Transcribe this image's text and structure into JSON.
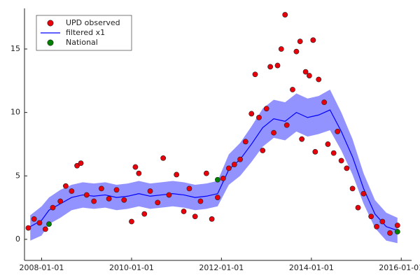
{
  "chart_data": {
    "type": "scatter",
    "xlim": [
      "2007-08-15",
      "2016-03-25"
    ],
    "xticks": [
      "2008-01-01",
      "2010-01-01",
      "2012-01-01",
      "2014-01-01",
      "2016-01-01"
    ],
    "ylim": [
      -1.66,
      18.2
    ],
    "yticks": [
      0,
      5,
      10,
      15
    ],
    "grid": false,
    "legend": "top-left",
    "series": [
      {
        "name": "UPD observed",
        "kind": "points",
        "color": "#e8000b",
        "x": [
          "2007-09-15",
          "2007-11-01",
          "2007-12-15",
          "2008-02-01",
          "2008-04-01",
          "2008-06-01",
          "2008-07-15",
          "2008-09-01",
          "2008-10-15",
          "2008-11-15",
          "2009-01-01",
          "2009-03-01",
          "2009-05-01",
          "2009-07-01",
          "2009-09-01",
          "2009-11-01",
          "2010-01-01",
          "2010-02-01",
          "2010-03-01",
          "2010-04-15",
          "2010-06-01",
          "2010-08-01",
          "2010-09-15",
          "2010-11-01",
          "2011-01-01",
          "2011-03-01",
          "2011-04-15",
          "2011-06-01",
          "2011-07-15",
          "2011-09-01",
          "2011-10-15",
          "2011-12-01",
          "2012-01-15",
          "2012-03-01",
          "2012-04-15",
          "2012-06-01",
          "2012-07-15",
          "2012-09-01",
          "2012-10-01",
          "2012-11-01",
          "2012-12-01",
          "2013-01-01",
          "2013-02-01",
          "2013-03-01",
          "2013-04-01",
          "2013-05-01",
          "2013-06-01",
          "2013-06-15",
          "2013-08-01",
          "2013-09-01",
          "2013-10-01",
          "2013-10-15",
          "2013-11-15",
          "2013-12-15",
          "2014-01-15",
          "2014-02-01",
          "2014-03-01",
          "2014-04-15",
          "2014-05-15",
          "2014-07-01",
          "2014-08-01",
          "2014-09-01",
          "2014-10-15",
          "2014-12-01",
          "2015-01-15",
          "2015-03-01",
          "2015-05-01",
          "2015-06-15",
          "2015-08-01",
          "2015-10-01",
          "2015-12-01"
        ],
        "values": [
          0.9,
          1.6,
          1.3,
          0.8,
          2.5,
          3.0,
          4.2,
          3.8,
          5.8,
          6.0,
          3.5,
          3.0,
          4.0,
          3.2,
          3.9,
          3.1,
          1.4,
          5.7,
          5.2,
          2.0,
          3.8,
          2.9,
          6.4,
          3.5,
          5.1,
          2.2,
          4.0,
          1.8,
          3.0,
          5.2,
          1.6,
          3.3,
          4.8,
          5.6,
          5.9,
          6.3,
          7.7,
          9.9,
          13.0,
          9.6,
          7.0,
          10.3,
          13.6,
          8.4,
          13.7,
          15.0,
          17.7,
          9.0,
          11.8,
          14.8,
          15.6,
          7.9,
          13.2,
          12.9,
          15.7,
          6.9,
          12.6,
          10.8,
          7.5,
          6.8,
          8.5,
          6.2,
          5.6,
          4.0,
          2.5,
          3.6,
          1.8,
          1.0,
          1.4,
          0.5,
          1.1
        ]
      },
      {
        "name": "filtered x1",
        "kind": "line",
        "color": "#0000ff",
        "band_color": "#8080ff",
        "x": [
          "2007-10-01",
          "2008-01-01",
          "2008-03-01",
          "2008-06-01",
          "2008-09-01",
          "2008-12-01",
          "2009-03-01",
          "2009-06-01",
          "2009-09-01",
          "2009-12-01",
          "2010-03-01",
          "2010-06-01",
          "2010-09-01",
          "2010-12-01",
          "2011-03-01",
          "2011-06-01",
          "2011-09-01",
          "2011-12-01",
          "2012-03-01",
          "2012-06-01",
          "2012-09-01",
          "2012-12-01",
          "2013-03-01",
          "2013-06-01",
          "2013-09-01",
          "2013-12-01",
          "2014-03-01",
          "2014-06-01",
          "2014-09-01",
          "2014-12-01",
          "2015-03-01",
          "2015-06-01",
          "2015-09-01",
          "2015-12-01"
        ],
        "values": [
          1.0,
          1.5,
          2.3,
          2.8,
          3.3,
          3.5,
          3.4,
          3.5,
          3.3,
          3.4,
          3.6,
          3.4,
          3.5,
          3.6,
          3.5,
          3.3,
          3.4,
          3.6,
          5.5,
          6.3,
          7.5,
          8.8,
          9.5,
          9.3,
          10.0,
          9.6,
          9.8,
          10.2,
          8.5,
          6.5,
          4.0,
          2.0,
          1.0,
          0.7
        ],
        "lower": [
          -0.1,
          0.3,
          1.2,
          1.7,
          2.3,
          2.5,
          2.4,
          2.5,
          2.3,
          2.4,
          2.6,
          2.4,
          2.5,
          2.6,
          2.5,
          2.3,
          2.4,
          2.6,
          4.3,
          5.0,
          6.1,
          7.3,
          8.0,
          7.8,
          8.5,
          8.1,
          8.3,
          8.6,
          7.0,
          5.1,
          2.8,
          0.9,
          -0.1,
          -0.3
        ],
        "upper": [
          1.9,
          2.6,
          3.3,
          3.9,
          4.3,
          4.5,
          4.4,
          4.5,
          4.3,
          4.4,
          4.6,
          4.4,
          4.5,
          4.6,
          4.5,
          4.3,
          4.4,
          4.6,
          6.7,
          7.6,
          8.9,
          10.3,
          11.0,
          10.8,
          11.5,
          11.1,
          11.3,
          11.8,
          10.0,
          7.9,
          5.2,
          3.1,
          2.1,
          1.7
        ]
      },
      {
        "name": "National",
        "kind": "points",
        "color": "#008000",
        "x": [
          "2008-03-01",
          "2011-12-01",
          "2015-12-01"
        ],
        "values": [
          1.2,
          4.7,
          0.6
        ]
      }
    ]
  }
}
